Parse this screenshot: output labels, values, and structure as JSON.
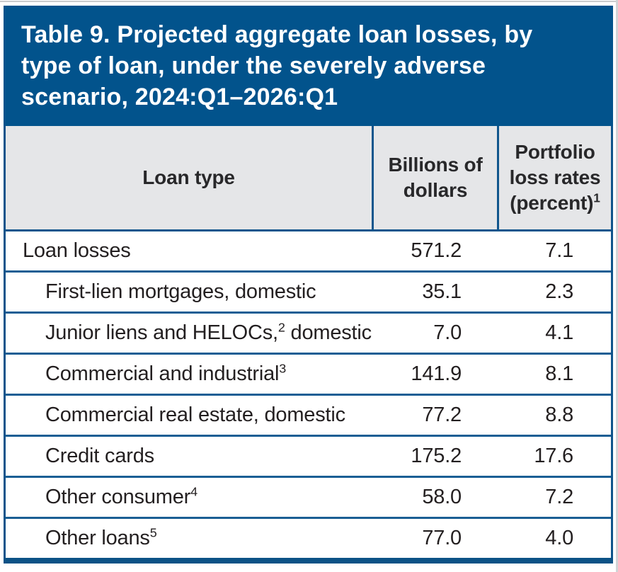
{
  "page": {
    "title": "Table 9. Projected aggregate loan losses, by type of loan, under the severely adverse scenario, 2024:Q1–2026:Q1",
    "title_lines": [
      "Table 9. Projected aggregate loan losses, by",
      "type of loan, under the severely adverse",
      "scenario, 2024:Q1–2026:Q1"
    ]
  },
  "colors": {
    "banner_blue": "#02538c",
    "border_blue": "#11568d",
    "row_separator_blue": "#1a5e94",
    "header_bg_gray": "#e5e6e8",
    "title_text": "#ffffff",
    "body_text": "#231f20"
  },
  "table": {
    "columns": [
      {
        "label": "Loan type",
        "sup": ""
      },
      {
        "label": "Billions of dollars",
        "sup": ""
      },
      {
        "label": "Portfolio loss rates (percent)",
        "sup": "1"
      }
    ],
    "rows": [
      {
        "indent": 0,
        "label": "Loan losses",
        "sup": "",
        "label_after": "",
        "billions": "571.2",
        "rate": "7.1"
      },
      {
        "indent": 1,
        "label": "First-lien mortgages, domestic",
        "sup": "",
        "label_after": "",
        "billions": "35.1",
        "rate": "2.3"
      },
      {
        "indent": 1,
        "label": "Junior liens and HELOCs,",
        "sup": "2",
        "label_after": " domestic",
        "billions": "7.0",
        "rate": "4.1"
      },
      {
        "indent": 1,
        "label": "Commercial and industrial",
        "sup": "3",
        "label_after": "",
        "billions": "141.9",
        "rate": "8.1"
      },
      {
        "indent": 1,
        "label": "Commercial real estate, domestic",
        "sup": "",
        "label_after": "",
        "billions": "77.2",
        "rate": "8.8"
      },
      {
        "indent": 1,
        "label": "Credit cards",
        "sup": "",
        "label_after": "",
        "billions": "175.2",
        "rate": "17.6"
      },
      {
        "indent": 1,
        "label": "Other consumer",
        "sup": "4",
        "label_after": "",
        "billions": "58.0",
        "rate": "7.2"
      },
      {
        "indent": 1,
        "label": "Other loans",
        "sup": "5",
        "label_after": "",
        "billions": "77.0",
        "rate": "4.0"
      }
    ]
  }
}
